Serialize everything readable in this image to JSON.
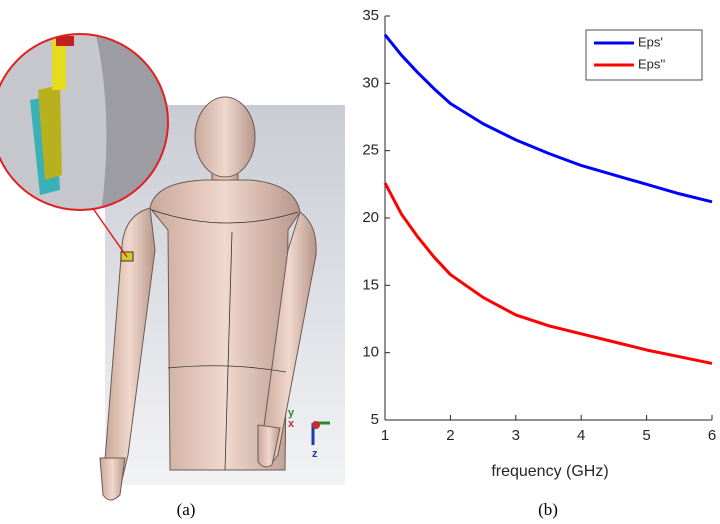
{
  "figure_a": {
    "caption": "(a)",
    "axis_labels": [
      "y",
      "x",
      "z"
    ]
  },
  "figure_b": {
    "caption": "(b)"
  },
  "chart_data": {
    "type": "line",
    "x": [
      1,
      1.25,
      1.5,
      1.75,
      2,
      2.5,
      3,
      3.5,
      4,
      4.5,
      5,
      5.5,
      6
    ],
    "series": [
      {
        "name": "Eps'",
        "color": "#0000ff",
        "values": [
          33.6,
          32.1,
          30.8,
          29.6,
          28.5,
          27.0,
          25.8,
          24.8,
          23.9,
          23.2,
          22.5,
          21.8,
          21.2
        ]
      },
      {
        "name": "Eps''",
        "color": "#ff0000",
        "values": [
          22.6,
          20.3,
          18.6,
          17.1,
          15.8,
          14.1,
          12.8,
          12.0,
          11.4,
          10.8,
          10.2,
          9.7,
          9.2
        ]
      }
    ],
    "xlabel": "frequency (GHz)",
    "xlim": [
      1,
      6
    ],
    "xticks": [
      1,
      2,
      3,
      4,
      5,
      6
    ],
    "ylim": [
      5,
      35
    ],
    "yticks": [
      5,
      10,
      15,
      20,
      25,
      30,
      35
    ],
    "legend": "upper right",
    "grid": false
  }
}
